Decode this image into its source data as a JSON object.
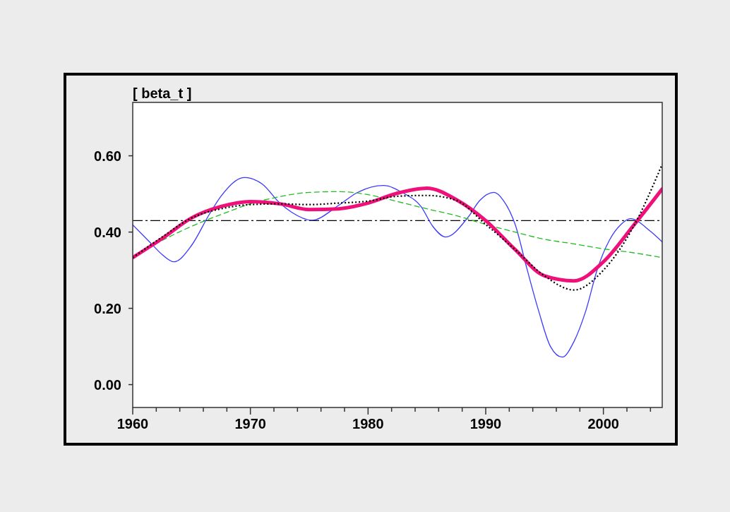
{
  "chart_data": {
    "type": "line",
    "title": "[ beta_t ]",
    "xlim": [
      1960,
      2005
    ],
    "ylim": [
      -0.06,
      0.74
    ],
    "xticks": [
      1960,
      {
        "value": 1962,
        "label": null
      },
      {
        "value": 1964,
        "label": null
      },
      {
        "value": 1966,
        "label": null
      },
      {
        "value": 1968,
        "label": null
      },
      1970,
      {
        "value": 1972,
        "label": null
      },
      {
        "value": 1974,
        "label": null
      },
      {
        "value": 1976,
        "label": null
      },
      {
        "value": 1978,
        "label": null
      },
      1980,
      {
        "value": 1982,
        "label": null
      },
      {
        "value": 1984,
        "label": null
      },
      {
        "value": 1986,
        "label": null
      },
      {
        "value": 1988,
        "label": null
      },
      1990,
      {
        "value": 1992,
        "label": null
      },
      {
        "value": 1994,
        "label": null
      },
      {
        "value": 1996,
        "label": null
      },
      {
        "value": 1998,
        "label": null
      },
      2000,
      {
        "value": 2002,
        "label": null
      },
      {
        "value": 2004,
        "label": null
      }
    ],
    "yticks": [
      {
        "value": 0,
        "label": "0.00"
      },
      {
        "value": 0.2,
        "label": "0.20"
      },
      {
        "value": 0.4,
        "label": "0.40"
      },
      {
        "value": 0.6,
        "label": "0.60"
      }
    ],
    "grid": false,
    "ref_lines": [
      {
        "axis": "y",
        "value": 0.43,
        "label": null,
        "color": "#000000",
        "line_style": "dashed"
      }
    ],
    "series": [
      {
        "color": "#3a3aff",
        "line_style": "solid",
        "x": [
          1960,
          1961.5,
          1962.5,
          1963.5,
          1965,
          1966.5,
          1967.5,
          1969.5,
          1971,
          1972.5,
          1973.5,
          1975.2,
          1977.5,
          1979,
          1981.3,
          1983,
          1984.5,
          1985.5,
          1986.6,
          1988.5,
          1989.5,
          1990.7,
          1991.5,
          1992.5,
          1993.5,
          1994.5,
          1995.5,
          1996.5,
          1997.5,
          1998.5,
          1999.5,
          2000.5,
          2001.5,
          2002.3,
          2004,
          2005
        ],
        "values": [
          0.419,
          0.372,
          0.341,
          0.322,
          0.365,
          0.446,
          0.494,
          0.543,
          0.526,
          0.476,
          0.452,
          0.431,
          0.47,
          0.502,
          0.522,
          0.502,
          0.467,
          0.415,
          0.387,
          0.439,
          0.483,
          0.504,
          0.483,
          0.42,
          0.304,
          0.193,
          0.1,
          0.072,
          0.113,
          0.193,
          0.304,
          0.378,
          0.42,
          0.435,
          0.402,
          0.374
        ]
      },
      {
        "color": "#22bb22",
        "line_style": "dashed",
        "x": [
          1960,
          1962.5,
          1965,
          1967.5,
          1970,
          1972.5,
          1975,
          1977.5,
          1980,
          1982.5,
          1985,
          1987.5,
          1990,
          1992.5,
          1995,
          1997.5,
          2000,
          2002.5,
          2005
        ],
        "values": [
          0.333,
          0.378,
          0.415,
          0.446,
          0.474,
          0.493,
          0.504,
          0.506,
          0.498,
          0.48,
          0.461,
          0.443,
          0.42,
          0.4,
          0.381,
          0.369,
          0.356,
          0.346,
          0.333
        ]
      },
      {
        "color": "#f0107a",
        "line_style": "solid",
        "x": [
          1960,
          1962.5,
          1965,
          1967.5,
          1970,
          1972.5,
          1975,
          1977.5,
          1980,
          1982.5,
          1985,
          1987.5,
          1990,
          1992.5,
          1995,
          1997.5,
          2000,
          2002.5,
          2005
        ],
        "values": [
          0.333,
          0.383,
          0.437,
          0.467,
          0.48,
          0.474,
          0.459,
          0.461,
          0.476,
          0.502,
          0.515,
          0.485,
          0.43,
          0.354,
          0.285,
          0.272,
          0.322,
          0.415,
          0.513
        ]
      },
      {
        "color": "#000000",
        "line_style": "dotted",
        "x": [
          1960,
          1962.5,
          1965,
          1967.5,
          1970,
          1972.5,
          1975,
          1977.5,
          1980,
          1982.5,
          1985,
          1987.5,
          1990,
          1992.5,
          1995,
          1997.5,
          2000,
          2002.5,
          2005
        ],
        "values": [
          0.333,
          0.387,
          0.437,
          0.461,
          0.472,
          0.474,
          0.472,
          0.476,
          0.481,
          0.494,
          0.496,
          0.483,
          0.42,
          0.354,
          0.285,
          0.248,
          0.3,
          0.411,
          0.578
        ]
      }
    ]
  }
}
